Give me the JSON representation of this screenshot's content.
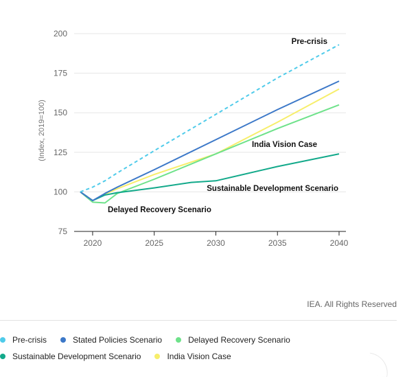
{
  "chart_data": {
    "type": "line",
    "ylabel": "(Index, 2019=100)",
    "xlim": [
      2019,
      2040
    ],
    "ylim": [
      75,
      200
    ],
    "x_ticks": [
      "2020",
      "2025",
      "2030",
      "2035",
      "2040"
    ],
    "y_ticks": [
      "75",
      "100",
      "125",
      "150",
      "175",
      "200"
    ],
    "grid": "horizontal",
    "legend_position": "bottom",
    "series": [
      {
        "name": "Pre-crisis",
        "color": "#4fcbea",
        "dashed": true,
        "x": [
          2019,
          2020,
          2021,
          2022,
          2025,
          2030,
          2035,
          2040
        ],
        "y": [
          100,
          103,
          107,
          112,
          126,
          149,
          172,
          193
        ]
      },
      {
        "name": "Stated Policies Scenario",
        "color": "#3c78c8",
        "dashed": false,
        "x": [
          2019,
          2020,
          2021,
          2022,
          2025,
          2030,
          2035,
          2040
        ],
        "y": [
          100,
          94.5,
          99,
          103,
          114,
          133,
          152,
          170
        ]
      },
      {
        "name": "Delayed Recovery Scenario",
        "color": "#6ee28a",
        "dashed": false,
        "x": [
          2019,
          2020,
          2021,
          2022,
          2025,
          2030,
          2035,
          2040
        ],
        "y": [
          100,
          93.5,
          93,
          99,
          108,
          124,
          140,
          155
        ]
      },
      {
        "name": "Sustainable Development Scenario",
        "color": "#12a98a",
        "dashed": false,
        "x": [
          2019,
          2020,
          2021,
          2022,
          2025,
          2028,
          2030,
          2035,
          2040
        ],
        "y": [
          100,
          94.5,
          98,
          99.5,
          102.5,
          106,
          107,
          116,
          124
        ]
      },
      {
        "name": "India Vision Case",
        "color": "#f7ee6b",
        "dashed": false,
        "x": [
          2019,
          2020,
          2021,
          2022,
          2025,
          2030,
          2035,
          2040
        ],
        "y": [
          100,
          94.5,
          98.5,
          102,
          111,
          124,
          144,
          165
        ]
      }
    ],
    "annotations": [
      {
        "text": "Pre-crisis"
      },
      {
        "text": "India Vision Case"
      },
      {
        "text": "Sustainable Development Scenario"
      },
      {
        "text": "Delayed Recovery Scenario"
      }
    ]
  },
  "credit": "IEA. All Rights Reserved"
}
